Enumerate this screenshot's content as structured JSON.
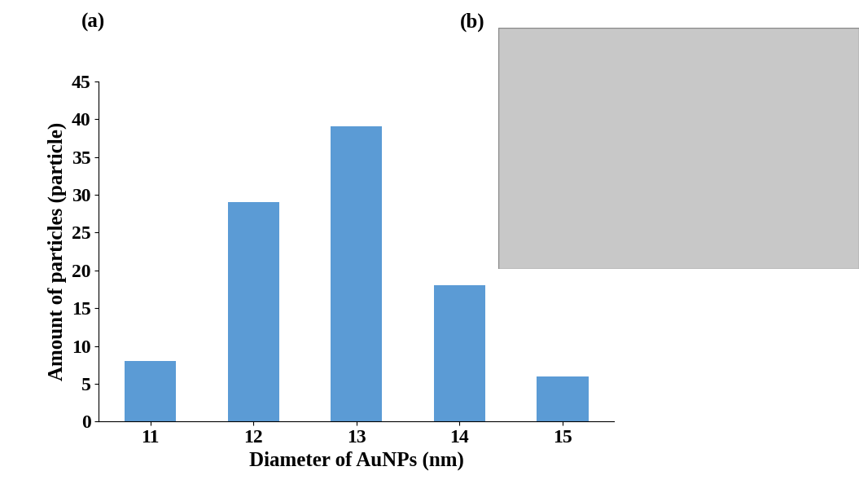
{
  "chart_data": {
    "type": "bar",
    "x_label": "Diameter of AuNPs (nm)",
    "y_label": "Amount of particles (particle)",
    "categories": [
      "11",
      "12",
      "13",
      "14",
      "15"
    ],
    "values": [
      8,
      29,
      39,
      18,
      6
    ],
    "color": "#5b9bd5",
    "ylim": [
      0,
      45
    ],
    "yticks": [
      0,
      5,
      10,
      15,
      20,
      25,
      30,
      35,
      40,
      45
    ],
    "grid": false
  },
  "panel_labels": [
    "(a)",
    "(b)"
  ]
}
